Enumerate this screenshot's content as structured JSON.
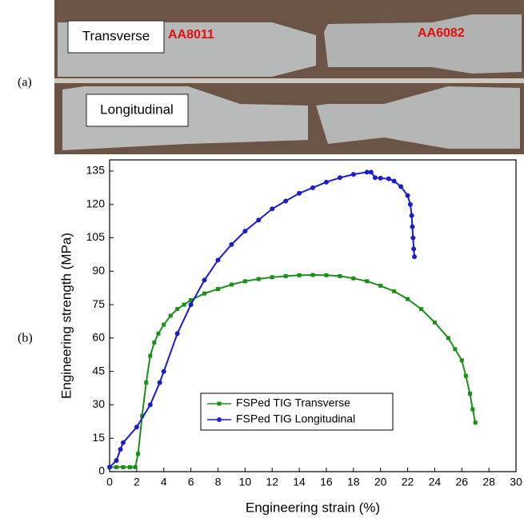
{
  "panel_labels": [
    "(a)",
    "(b)"
  ],
  "photo": {
    "specimen_labels": [
      "Transverse",
      "Longitudinal"
    ],
    "alloy_labels": [
      "AA8011",
      "AA6082"
    ]
  },
  "chart_data": {
    "type": "line",
    "xlabel": "Engineering strain (%)",
    "ylabel": "Engineering strength (MPa)",
    "xlim": [
      0,
      30
    ],
    "ylim": [
      0,
      140
    ],
    "xticks": [
      0,
      2,
      4,
      6,
      8,
      10,
      12,
      14,
      16,
      18,
      20,
      22,
      24,
      26,
      28,
      30
    ],
    "yticks": [
      0,
      15,
      30,
      45,
      60,
      75,
      90,
      105,
      120,
      135
    ],
    "legend": "lower center",
    "series": [
      {
        "name": "FSPed TIG Transverse",
        "color": "#1a8f1a",
        "marker": "square",
        "x": [
          0,
          0.5,
          1,
          1.5,
          1.9,
          2.1,
          2.4,
          2.7,
          3,
          3.3,
          3.6,
          4,
          4.5,
          5,
          5.5,
          6,
          7,
          8,
          9,
          10,
          11,
          12,
          13,
          14,
          15,
          16,
          17,
          18,
          19,
          20,
          21,
          22,
          23,
          24,
          25,
          25.5,
          26,
          26.3,
          26.6,
          26.8,
          27
        ],
        "values": [
          2,
          2,
          2,
          2,
          2,
          8,
          25,
          40,
          52,
          58,
          62,
          66,
          70,
          73,
          75,
          77,
          80,
          82,
          84,
          85.5,
          86.5,
          87.3,
          87.8,
          88.2,
          88.3,
          88.2,
          87.8,
          86.8,
          85.5,
          83.5,
          81,
          77.5,
          73,
          67,
          60,
          55,
          50,
          43,
          35,
          28,
          22
        ]
      },
      {
        "name": "FSPed TIG Longitudinal",
        "color": "#1c1cc8",
        "marker": "circle",
        "x": [
          0,
          0.5,
          0.8,
          1,
          2,
          3,
          3.7,
          4,
          5,
          6,
          7,
          8,
          9,
          10,
          11,
          12,
          13,
          14,
          15,
          16,
          17,
          18,
          19,
          19.3,
          19.6,
          20,
          20.6,
          21,
          21.5,
          22,
          22.2,
          22.3,
          22.35,
          22.4,
          22.45,
          22.5
        ],
        "values": [
          2,
          5,
          10,
          13,
          20,
          30,
          40,
          45,
          62,
          75,
          86,
          95,
          102,
          108,
          113,
          118,
          121.5,
          125,
          127.5,
          130,
          132,
          133.5,
          134.5,
          134.5,
          132,
          131.8,
          131.5,
          130.5,
          128,
          124,
          120,
          115,
          110,
          105,
          100,
          96.5
        ]
      }
    ]
  }
}
